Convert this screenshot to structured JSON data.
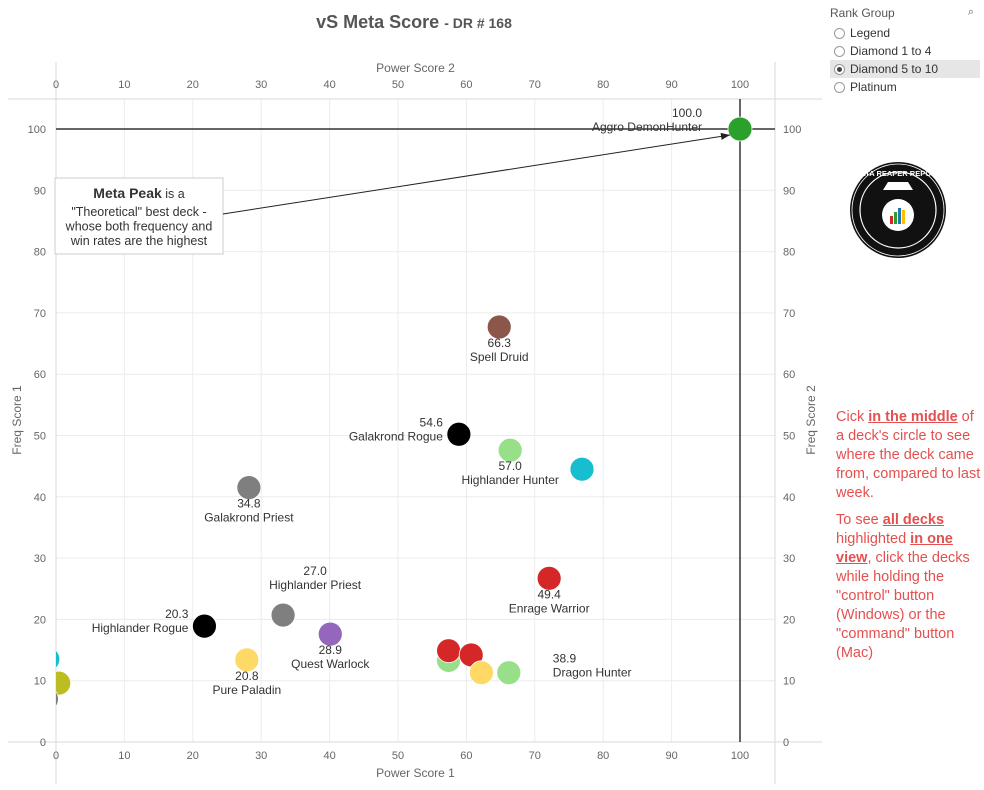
{
  "title": {
    "main": "vS Meta Score",
    "sub": "- DR # 168"
  },
  "filter": {
    "title": "Rank Group",
    "search_icon": "search-icon",
    "options": [
      "Legend",
      "Diamond 1 to 4",
      "Diamond 5 to 10",
      "Platinum"
    ],
    "selected": "Diamond 5 to 10"
  },
  "annotation": {
    "bold": "Meta Peak",
    "rest_first": "is a",
    "lines": [
      "\"Theoretical\" best deck -",
      "whose both frequency and",
      "win rates are the highest"
    ]
  },
  "help": {
    "p1": {
      "a": "Cick ",
      "b": "in the middle",
      "c": " of a deck's circle to see where the deck came from, compared to last week."
    },
    "p2": {
      "a": "To see ",
      "b1": "all decks ",
      "mid": " highlighted ",
      "b2": "in one view",
      "c": ", click the decks while holding the \"control\" button (Windows) or the \"command\" button (Mac)"
    }
  },
  "logo": {
    "text": "DATA REAPER REPORT",
    "icon": "reaper-logo-icon"
  },
  "colors": {
    "help_text": "#e4504f",
    "peak_green": "#2ca02c"
  },
  "chart_data": {
    "type": "scatter",
    "xlabel_bottom": "Power Score 1",
    "xlabel_top": "Power Score 2",
    "ylabel_left": "Freq Score 1",
    "ylabel_right": "Freq Score 2",
    "xlim": [
      0,
      105
    ],
    "ylim": [
      0,
      105
    ],
    "xticks": [
      0,
      10,
      20,
      30,
      40,
      50,
      60,
      70,
      80,
      90,
      100
    ],
    "yticks": [
      0,
      10,
      20,
      30,
      40,
      50,
      60,
      70,
      80,
      90,
      100
    ],
    "grid": true,
    "reference_lines": {
      "x": 100,
      "y": 100
    },
    "points": [
      {
        "x": 100,
        "y": 100,
        "color": "#2ca02c",
        "value": "100.0",
        "name": "Aggro DemonHunter"
      },
      {
        "x": 64.8,
        "y": 67.7,
        "color": "#8c564b",
        "value": "66.3",
        "name": "Spell Druid"
      },
      {
        "x": 58.9,
        "y": 50.2,
        "color": "#000000",
        "value": "54.6",
        "name": "Galakrond Rogue"
      },
      {
        "x": 66.4,
        "y": 47.6,
        "color": "#98df8a",
        "value": "57.0",
        "name": "Highlander Hunter"
      },
      {
        "x": 76.9,
        "y": 44.5,
        "color": "#17becf",
        "value": "",
        "name": ""
      },
      {
        "x": 28.2,
        "y": 41.5,
        "color": "#7f7f7f",
        "value": "34.8",
        "name": "Galakrond Priest"
      },
      {
        "x": 72.1,
        "y": 26.7,
        "color": "#d62728",
        "value": "49.4",
        "name": "Enrage Warrior"
      },
      {
        "x": 33.2,
        "y": 20.7,
        "color": "#7f7f7f",
        "value": "27.0",
        "name": "Highlander Priest"
      },
      {
        "x": 21.7,
        "y": 18.9,
        "color": "#000000",
        "value": "20.3",
        "name": "Highlander Rogue"
      },
      {
        "x": 40.1,
        "y": 17.6,
        "color": "#9467bd",
        "value": "28.9",
        "name": "Quest Warlock"
      },
      {
        "x": 27.9,
        "y": 13.4,
        "color": "#ffd966",
        "value": "20.8",
        "name": "Pure Paladin"
      },
      {
        "x": 57.4,
        "y": 13.3,
        "color": "#98df8a",
        "value": "",
        "name": ""
      },
      {
        "x": 57.4,
        "y": 14.9,
        "color": "#d62728",
        "value": "",
        "name": ""
      },
      {
        "x": 60.7,
        "y": 14.2,
        "color": "#d62728",
        "value": "",
        "name": ""
      },
      {
        "x": 62.2,
        "y": 11.3,
        "color": "#ffd966",
        "value": "",
        "name": ""
      },
      {
        "x": 66.2,
        "y": 11.3,
        "color": "#98df8a",
        "value": "38.9",
        "name": "Dragon Hunter"
      },
      {
        "x": 0.4,
        "y": 9.6,
        "color": "#bcbd22",
        "value": "",
        "name": ""
      },
      {
        "x": -1.2,
        "y": 13.5,
        "color": "#17becf",
        "value": "",
        "name": ""
      },
      {
        "x": -1.4,
        "y": 7.0,
        "color": "#7f7f7f",
        "value": "",
        "name": ""
      }
    ]
  }
}
